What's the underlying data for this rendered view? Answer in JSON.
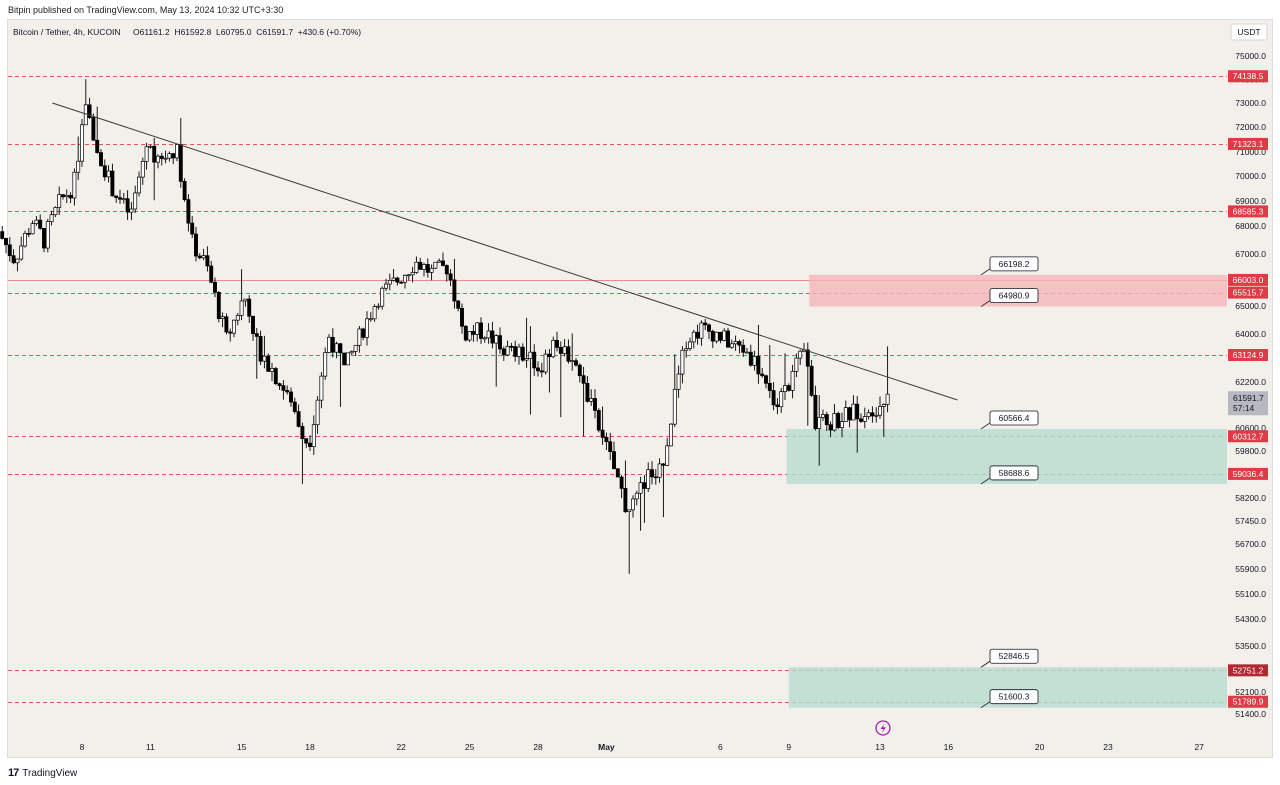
{
  "header": {
    "publish_line": "Bitpin published on TradingView.com, May 13, 2024 10:32 UTC+3:30"
  },
  "legend": {
    "title": "Bitcoin / Tether, 4h, KUCOIN",
    "ohlc": "O61161.2  H61592.8  L60795.0  C61591.7  +430.6 (+0.70%)"
  },
  "footer": {
    "logo_text": "TradingView",
    "logo_mark": "17"
  },
  "colors": {
    "background": "#f3f0ec",
    "up": "#ffffff",
    "down": "#000000",
    "level_red": "#e03a47",
    "supply_zone": "#f4b6b8",
    "demand_zone": "#b5dccd",
    "trendline": "#3a3a3a",
    "axis_text": "#131722"
  },
  "chart_data": {
    "type": "candlestick",
    "symbol": "Bitcoin / Tether",
    "timeframe": "4h",
    "exchange": "KUCOIN",
    "currency": "USDT",
    "last": {
      "open": 61161.2,
      "high": 61592.8,
      "low": 60795.0,
      "close": 61591.7,
      "change": "+430.6",
      "change_pct": "+0.70%"
    },
    "price_label": {
      "value": "61591.7",
      "countdown": "57:14"
    },
    "y_ticks": [
      "75000.0",
      "74000.0",
      "73000.0",
      "72000.0",
      "71000.0",
      "70000.0",
      "69000.0",
      "68000.0",
      "67000.0",
      "66000.0",
      "65000.0",
      "64000.0",
      "63000.0",
      "62200.0",
      "61400.0",
      "60600.0",
      "59800.0",
      "59000.0",
      "58200.0",
      "57450.0",
      "56700.0",
      "55900.0",
      "55100.0",
      "54300.0",
      "53500.0",
      "52700.0",
      "52100.0",
      "51400.0"
    ],
    "x_ticks": [
      {
        "label": "8",
        "day": 8
      },
      {
        "label": "11",
        "day": 11
      },
      {
        "label": "15",
        "day": 15
      },
      {
        "label": "18",
        "day": 18
      },
      {
        "label": "22",
        "day": 22
      },
      {
        "label": "25",
        "day": 25
      },
      {
        "label": "28",
        "day": 28
      },
      {
        "label": "May",
        "day": 31
      },
      {
        "label": "6",
        "day": 36
      },
      {
        "label": "9",
        "day": 39
      },
      {
        "label": "13",
        "day": 43
      },
      {
        "label": "16",
        "day": 46
      },
      {
        "label": "20",
        "day": 50
      },
      {
        "label": "23",
        "day": 53
      },
      {
        "label": "27",
        "day": 57
      }
    ],
    "levels": [
      {
        "price": 74138.5,
        "label": "74138.5",
        "style": "dashed"
      },
      {
        "price": 71323.1,
        "label": "71323.1",
        "style": "dashed"
      },
      {
        "price": 68585.3,
        "label": "68585.3",
        "style": "dashed"
      },
      {
        "price": 66003.0,
        "label": "66003.0",
        "style": "solid"
      },
      {
        "price": 65515.7,
        "label": "65515.7",
        "style": "dashed"
      },
      {
        "price": 63124.9,
        "label": "63124.9",
        "style": "dashed"
      },
      {
        "price": 60312.7,
        "label": "60312.7",
        "style": "dashed"
      },
      {
        "price": 59036.4,
        "label": "59036.4",
        "style": "dashed"
      },
      {
        "price": 52751.2,
        "label": "52751.2",
        "style": "dashed",
        "dark": true
      },
      {
        "price": 51789.9,
        "label": "51789.9",
        "style": "dashed"
      }
    ],
    "zones": [
      {
        "kind": "supply",
        "top": 66198.2,
        "bottom": 64980.9,
        "start_day": 39.9,
        "top_label": "66198.2",
        "bottom_label": "64980.9"
      },
      {
        "kind": "demand",
        "top": 60566.4,
        "bottom": 58688.6,
        "start_day": 38.9,
        "top_label": "60566.4",
        "bottom_label": "58688.6"
      },
      {
        "kind": "demand",
        "top": 52846.5,
        "bottom": 51600.3,
        "start_day": 39.0,
        "top_label": "52846.5",
        "bottom_label": "51600.3"
      }
    ],
    "trendline": {
      "start": {
        "day": 6.7,
        "price": 73000
      },
      "end": {
        "day": 46.4,
        "price": 61600
      }
    },
    "path_anchors": [
      [
        4.5,
        67800
      ],
      [
        5.2,
        66800
      ],
      [
        6.0,
        68200
      ],
      [
        6.5,
        67500
      ],
      [
        7.2,
        69000
      ],
      [
        7.8,
        69600
      ],
      [
        8.3,
        72800
      ],
      [
        8.8,
        71200
      ],
      [
        9.5,
        69500
      ],
      [
        10.3,
        68400
      ],
      [
        11.0,
        71300
      ],
      [
        11.6,
        70600
      ],
      [
        12.3,
        71200
      ],
      [
        13.0,
        67400
      ],
      [
        13.6,
        66600
      ],
      [
        14.5,
        63800
      ],
      [
        15.3,
        65400
      ],
      [
        16.0,
        63200
      ],
      [
        16.7,
        62400
      ],
      [
        17.5,
        61200
      ],
      [
        18.1,
        60000
      ],
      [
        19.0,
        63900
      ],
      [
        19.7,
        62600
      ],
      [
        20.5,
        64200
      ],
      [
        21.2,
        65400
      ],
      [
        22.0,
        66000
      ],
      [
        22.8,
        66700
      ],
      [
        23.5,
        66300
      ],
      [
        24.2,
        66500
      ],
      [
        24.9,
        64000
      ],
      [
        25.8,
        64100
      ],
      [
        26.6,
        63400
      ],
      [
        27.5,
        63100
      ],
      [
        28.2,
        62700
      ],
      [
        29.0,
        63600
      ],
      [
        29.7,
        63000
      ],
      [
        30.3,
        61800
      ],
      [
        30.9,
        60400
      ],
      [
        31.5,
        59200
      ],
      [
        32.2,
        57600
      ],
      [
        33.0,
        59000
      ],
      [
        33.8,
        59500
      ],
      [
        34.5,
        63600
      ],
      [
        35.3,
        64200
      ],
      [
        36.0,
        64000
      ],
      [
        36.6,
        63600
      ],
      [
        37.3,
        63300
      ],
      [
        38.0,
        62500
      ],
      [
        38.6,
        61300
      ],
      [
        39.3,
        62400
      ],
      [
        39.9,
        63300
      ],
      [
        40.3,
        60700
      ],
      [
        41.0,
        60800
      ],
      [
        41.8,
        61100
      ],
      [
        42.4,
        61200
      ],
      [
        43.0,
        61400
      ],
      [
        43.4,
        61592
      ]
    ]
  }
}
